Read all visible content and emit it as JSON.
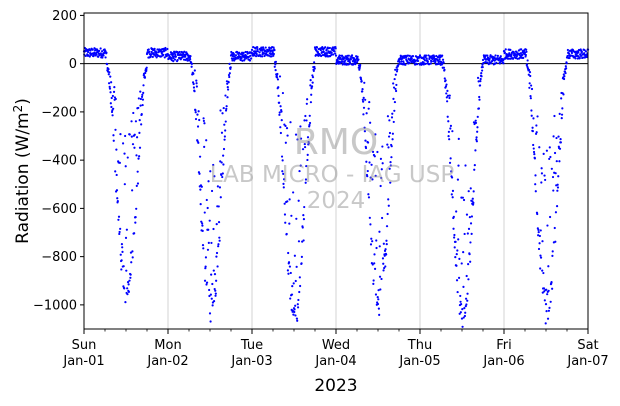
{
  "chart_data": {
    "type": "scatter",
    "ylabel": "Radiation (W/m²)",
    "xlabel": "2023",
    "ylim": [
      -1100,
      210
    ],
    "xlim_days": [
      1,
      7
    ],
    "yticks": [
      200,
      0,
      -200,
      -400,
      -600,
      -800,
      -1000
    ],
    "xticks": [
      {
        "day": 1,
        "line1": "Sun",
        "line2": "Jan-01"
      },
      {
        "day": 2,
        "line1": "Mon",
        "line2": "Jan-02"
      },
      {
        "day": 3,
        "line1": "Tue",
        "line2": "Jan-03"
      },
      {
        "day": 4,
        "line1": "Wed",
        "line2": "Jan-04"
      },
      {
        "day": 5,
        "line1": "Thu",
        "line2": "Jan-05"
      },
      {
        "day": 6,
        "line1": "Fri",
        "line2": "Jan-06"
      },
      {
        "day": 7,
        "line1": "Sat",
        "line2": "Jan-07"
      }
    ],
    "grid": "vertical",
    "zero_line": true,
    "marker_color": "#0000ff",
    "series": [
      {
        "daily_minima": [
          -1000,
          -1090,
          -1100,
          -1050,
          -1090,
          -1090
        ],
        "night_levels": [
          45,
          30,
          50,
          15,
          15,
          40
        ]
      }
    ],
    "watermark": {
      "line1": "RMO",
      "line2": "LAB MICRO - IAG USP",
      "line3": "2024"
    }
  }
}
